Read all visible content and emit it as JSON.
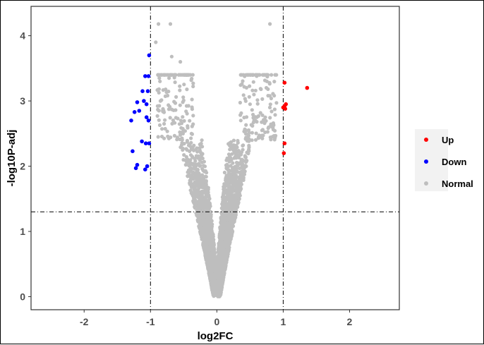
{
  "chart_data": {
    "type": "scatter",
    "title": "",
    "xlabel": "log2FC",
    "ylabel": "-log10P-adj",
    "xlim": [
      -2.8,
      2.75
    ],
    "ylim": [
      -0.2,
      4.45
    ],
    "x_ticks": [
      -2,
      -1,
      0,
      1,
      2
    ],
    "y_ticks": [
      0,
      1,
      2,
      3,
      4
    ],
    "x_tick_labels": [
      "-2",
      "-1",
      "0",
      "1",
      "2"
    ],
    "y_tick_labels": [
      "0",
      "1",
      "2",
      "3",
      "4"
    ],
    "grid": false,
    "legend_position": "right",
    "thresholds": {
      "log2FC": [
        -1,
        1
      ],
      "neg_log10_padj": 1.3
    },
    "colors": {
      "Up": "#ff0000",
      "Down": "#0000ff",
      "Normal": "#bebebe"
    },
    "series": [
      {
        "name": "Up",
        "points": [
          [
            1.36,
            3.2
          ],
          [
            1.02,
            3.28
          ],
          [
            1.04,
            2.95
          ],
          [
            1.02,
            2.92
          ],
          [
            1.03,
            2.88
          ],
          [
            1.0,
            2.9
          ],
          [
            1.02,
            2.35
          ],
          [
            1.01,
            2.2
          ]
        ]
      },
      {
        "name": "Down",
        "points": [
          [
            -1.02,
            3.7
          ],
          [
            -1.08,
            3.38
          ],
          [
            -1.03,
            3.38
          ],
          [
            -1.04,
            3.15
          ],
          [
            -1.12,
            3.15
          ],
          [
            -1.1,
            3.0
          ],
          [
            -1.06,
            2.95
          ],
          [
            -1.2,
            2.98
          ],
          [
            -1.17,
            2.85
          ],
          [
            -1.06,
            2.75
          ],
          [
            -1.03,
            2.7
          ],
          [
            -1.24,
            2.83
          ],
          [
            -1.29,
            2.7
          ],
          [
            -1.02,
            2.35
          ],
          [
            -1.07,
            2.35
          ],
          [
            -1.13,
            2.38
          ],
          [
            -1.27,
            2.23
          ],
          [
            -1.2,
            2.02
          ],
          [
            -1.22,
            1.97
          ],
          [
            -1.05,
            2.0
          ],
          [
            -1.08,
            1.95
          ]
        ]
      },
      {
        "name": "Normal",
        "generated": true,
        "points": [
          [
            -0.72,
            3.35
          ],
          [
            -0.85,
            3.0
          ],
          [
            -0.55,
            3.6
          ],
          [
            -0.68,
            3.68
          ],
          [
            -0.88,
            4.18
          ],
          [
            -0.7,
            4.18
          ],
          [
            -0.92,
            3.9
          ],
          [
            0.8,
            4.18
          ],
          [
            0.6,
            3.38
          ],
          [
            0.77,
            3.18
          ],
          [
            0.5,
            2.95
          ],
          [
            0.73,
            2.75
          ],
          [
            0.82,
            2.62
          ]
        ]
      }
    ],
    "legend_entries": [
      "Up",
      "Down",
      "Normal"
    ]
  }
}
